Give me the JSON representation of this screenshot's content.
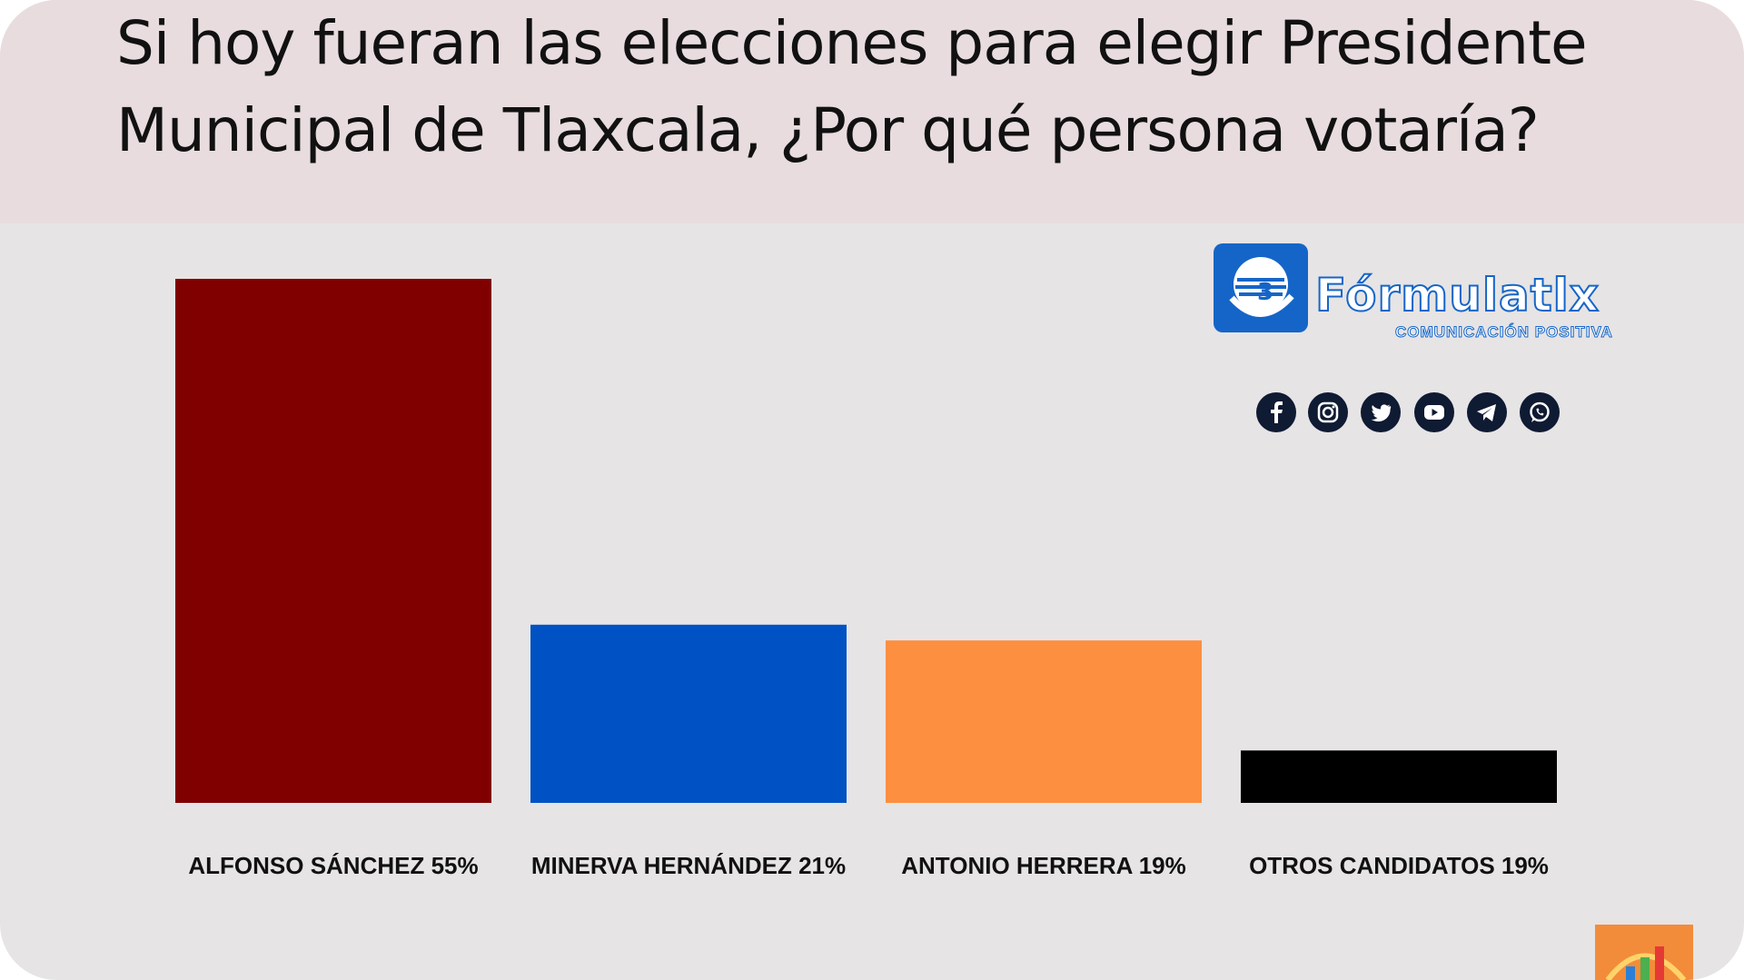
{
  "title": "Si hoy fueran las elecciones para elegir Presidente Municipal de Tlaxcala, ¿Por qué persona votaría?",
  "brand": {
    "name": "Fórmulatlx",
    "tagline": "COMUNICACIÓN POSITIVA"
  },
  "social_icons": [
    "facebook-icon",
    "instagram-icon",
    "twitter-icon",
    "youtube-icon",
    "telegram-icon",
    "whatsapp-icon"
  ],
  "chart_data": {
    "type": "bar",
    "title": "Si hoy fueran las elecciones para elegir Presidente Municipal de Tlaxcala, ¿Por qué persona votaría?",
    "categories": [
      "ALFONSO SÁNCHEZ",
      "MINERVA HERNÁNDEZ",
      "ANTONIO HERRERA",
      "OTROS CANDIDATOS"
    ],
    "values": [
      55,
      21,
      19,
      19
    ],
    "labels": [
      "ALFONSO SÁNCHEZ 55%",
      "MINERVA HERNÁNDEZ 21%",
      "ANTONIO HERRERA 19%",
      "OTROS CANDIDATOS 19%"
    ],
    "colors": [
      "#800000",
      "#0052c4",
      "#fd8f40",
      "#000000"
    ],
    "bar_heights_shown_as_percent_of_max": [
      100,
      34,
      31,
      10
    ],
    "ylim": [
      0,
      55
    ],
    "grid": false,
    "legend": "none"
  }
}
